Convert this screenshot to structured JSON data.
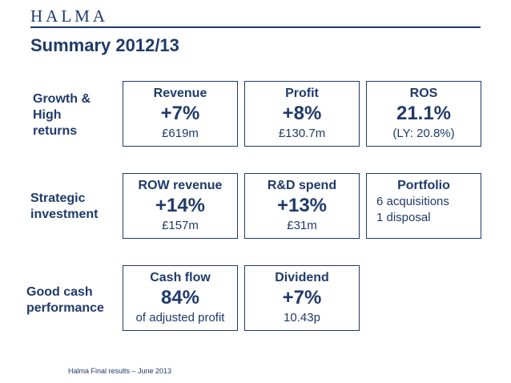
{
  "header": {
    "logo": "HALMA",
    "title": "Summary 2012/13"
  },
  "rows": [
    {
      "label": "Growth &\nHigh\nreturns"
    },
    {
      "label": "Strategic\ninvestment"
    },
    {
      "label": "Good cash\nperformance"
    }
  ],
  "boxes": {
    "revenue": {
      "title": "Revenue",
      "value": "+7%",
      "sub": "£619m"
    },
    "profit": {
      "title": "Profit",
      "value": "+8%",
      "sub": "£130.7m"
    },
    "ros": {
      "title": "ROS",
      "value": "21.1%",
      "sub": "(LY: 20.8%)"
    },
    "row_revenue": {
      "title": "ROW revenue",
      "value": "+14%",
      "sub": "£157m"
    },
    "rd_spend": {
      "title": "R&D spend",
      "value": "+13%",
      "sub": "£31m"
    },
    "portfolio": {
      "title": "Portfolio",
      "items": [
        "6 acquisitions",
        "1 disposal"
      ]
    },
    "cash_flow": {
      "title": "Cash flow",
      "value": "84%",
      "sub": "of adjusted profit"
    },
    "dividend": {
      "title": "Dividend",
      "value": "+7%",
      "sub": "10.43p"
    }
  },
  "footer": {
    "text": "Halma Final results – June 2013"
  },
  "colors": {
    "brand_navy": "#1f3a6b",
    "background": "#ffffff"
  }
}
